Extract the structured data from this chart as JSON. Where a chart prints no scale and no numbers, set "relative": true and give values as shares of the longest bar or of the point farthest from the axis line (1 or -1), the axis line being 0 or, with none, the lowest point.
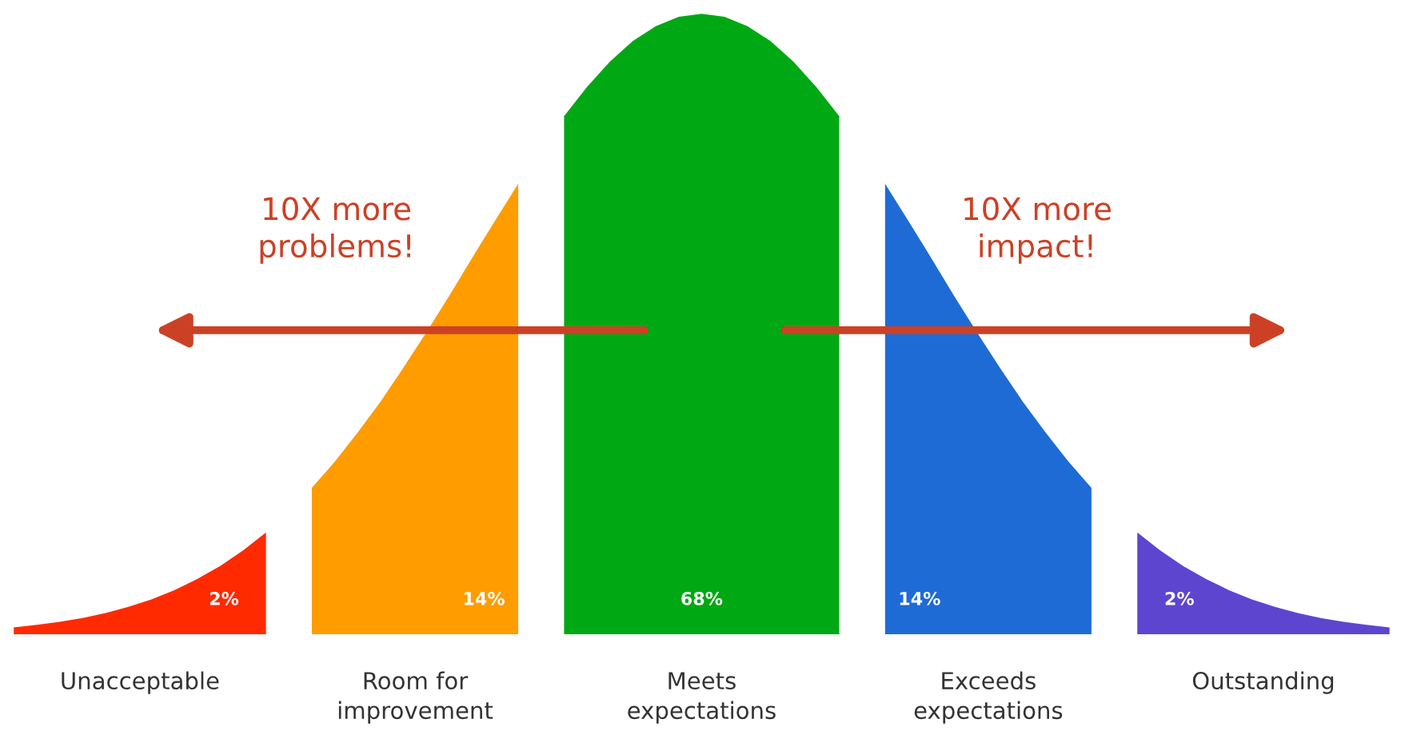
{
  "chart_data": {
    "type": "area",
    "relative": true,
    "tick_labels": false,
    "categories": [
      null,
      null,
      null,
      null,
      null,
      null,
      null,
      null,
      null,
      null,
      null,
      null,
      null,
      null,
      null,
      null,
      null,
      null,
      null,
      null,
      null,
      null,
      null,
      null,
      null,
      null,
      null,
      null,
      null,
      null,
      null,
      null,
      null,
      null,
      null,
      null,
      null,
      null,
      null,
      null,
      null,
      null,
      null,
      null,
      null,
      null,
      null,
      null,
      null,
      null,
      null,
      null,
      null,
      null,
      null,
      null,
      null,
      null,
      null,
      null,
      null
    ],
    "series": [
      {
        "name": "Unacceptable",
        "color": "#ff2a00",
        "values": [
          0.011,
          0.015,
          0.02,
          0.026,
          0.034,
          0.044,
          0.056,
          0.071,
          0.089,
          0.11,
          0.135,
          0.164,
          null,
          null,
          null,
          null,
          null,
          null,
          null,
          null,
          null,
          null,
          null,
          null,
          null,
          null,
          null,
          null,
          null,
          null,
          null,
          null,
          null,
          null,
          null,
          null,
          null,
          null,
          null,
          null,
          null,
          null,
          null,
          null,
          null,
          null,
          null,
          null,
          null,
          null,
          null,
          null,
          null,
          null,
          null,
          null,
          null,
          null,
          null,
          null,
          null
        ]
      },
      {
        "name": "Room for\nimprovement",
        "color": "#ff9c00",
        "values": [
          null,
          null,
          null,
          null,
          null,
          null,
          null,
          null,
          null,
          null,
          null,
          null,
          null,
          0.236,
          0.278,
          0.325,
          0.375,
          0.43,
          0.487,
          0.546,
          0.607,
          0.667,
          0.726,
          null,
          null,
          null,
          null,
          null,
          null,
          null,
          null,
          null,
          null,
          null,
          null,
          null,
          null,
          null,
          null,
          null,
          null,
          null,
          null,
          null,
          null,
          null,
          null,
          null,
          null,
          null,
          null,
          null,
          null,
          null,
          null,
          null,
          null,
          null,
          null,
          null,
          null
        ]
      },
      {
        "name": "Meets\nexpectations",
        "color": "#00a814",
        "values": [
          null,
          null,
          null,
          null,
          null,
          null,
          null,
          null,
          null,
          null,
          null,
          null,
          null,
          null,
          null,
          null,
          null,
          null,
          null,
          null,
          null,
          null,
          null,
          null,
          0.835,
          0.882,
          0.923,
          0.956,
          0.98,
          0.995,
          1,
          0.995,
          0.98,
          0.956,
          0.923,
          0.882,
          0.835,
          null,
          null,
          null,
          null,
          null,
          null,
          null,
          null,
          null,
          null,
          null,
          null,
          null,
          null,
          null,
          null,
          null,
          null,
          null,
          null,
          null,
          null,
          null,
          null
        ]
      },
      {
        "name": "Exceeds\nexpectations",
        "color": "#1f6bd6",
        "values": [
          null,
          null,
          null,
          null,
          null,
          null,
          null,
          null,
          null,
          null,
          null,
          null,
          null,
          null,
          null,
          null,
          null,
          null,
          null,
          null,
          null,
          null,
          null,
          null,
          null,
          null,
          null,
          null,
          null,
          null,
          null,
          null,
          null,
          null,
          null,
          null,
          null,
          null,
          0.726,
          0.667,
          0.607,
          0.546,
          0.487,
          0.43,
          0.375,
          0.325,
          0.278,
          0.236,
          null,
          null,
          null,
          null,
          null,
          null,
          null,
          null,
          null,
          null,
          null,
          null,
          null
        ]
      },
      {
        "name": "Outstanding",
        "color": "#5e45d0",
        "values": [
          null,
          null,
          null,
          null,
          null,
          null,
          null,
          null,
          null,
          null,
          null,
          null,
          null,
          null,
          null,
          null,
          null,
          null,
          null,
          null,
          null,
          null,
          null,
          null,
          null,
          null,
          null,
          null,
          null,
          null,
          null,
          null,
          null,
          null,
          null,
          null,
          null,
          null,
          null,
          null,
          null,
          null,
          null,
          null,
          null,
          null,
          null,
          null,
          null,
          0.164,
          0.135,
          0.11,
          0.089,
          0.071,
          0.056,
          0.044,
          0.034,
          0.026,
          0.02,
          0.015,
          0.011
        ]
      }
    ],
    "annotations": [
      "2%",
      "14%",
      "68%",
      "14%",
      "2%",
      "10X more\nproblems!",
      "10X more\nimpact!"
    ]
  }
}
